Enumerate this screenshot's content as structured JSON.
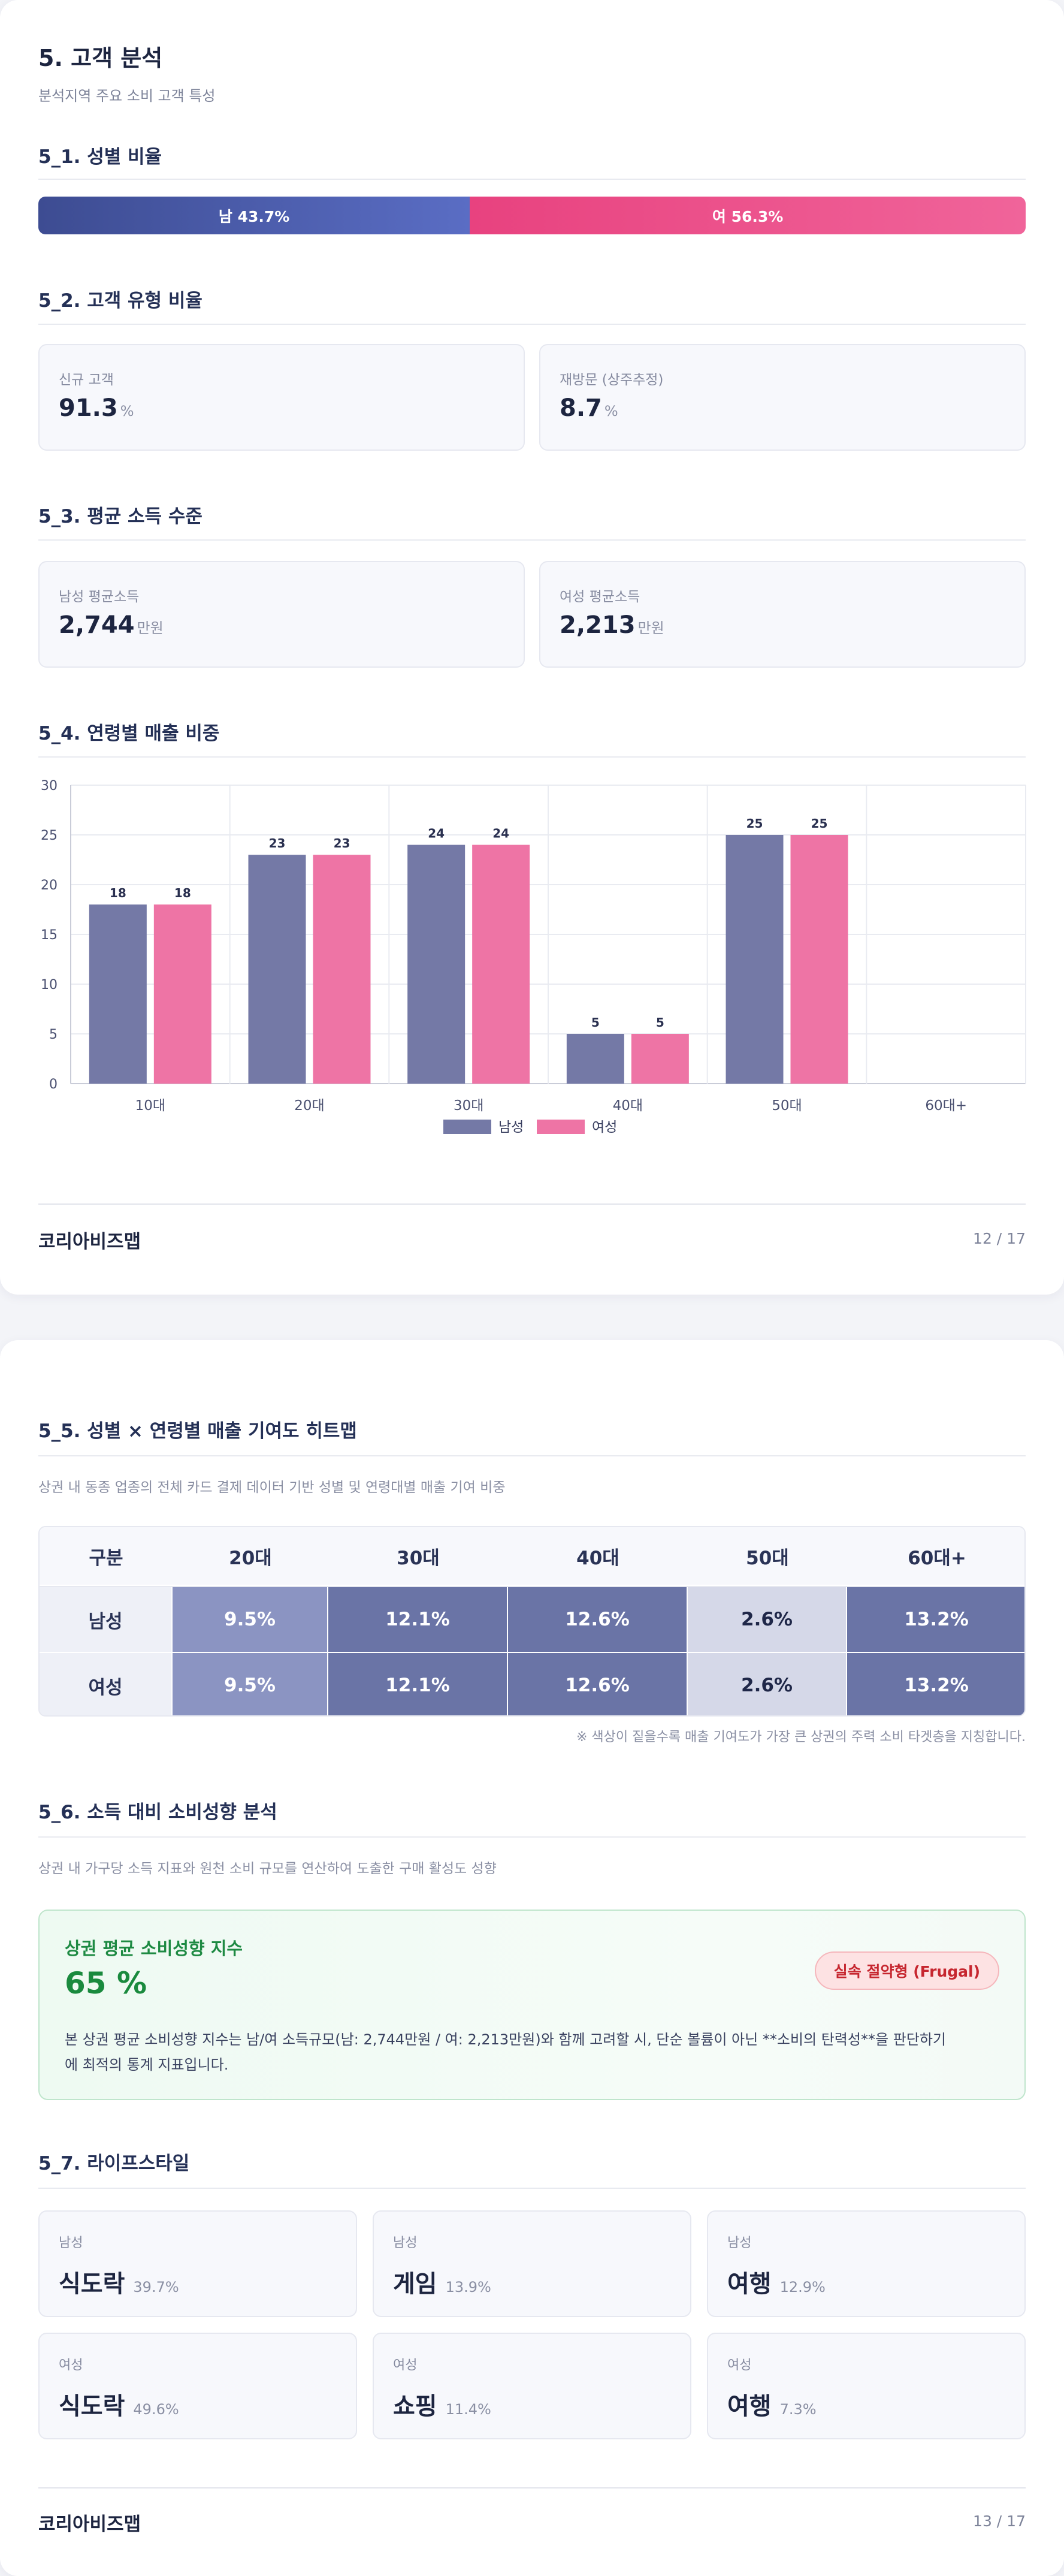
{
  "page1": {
    "title": "5. 고객 분석",
    "subtitle": "분석지역 주요 소비 고객 특성",
    "gender_section": {
      "title": "5_1. 성별 비율",
      "male_label": "남 43.7%",
      "female_label": "여 56.3%",
      "male_pct": 43.7,
      "female_pct": 56.3,
      "male_color": "#4a5cae",
      "female_color": "#ec4e89"
    },
    "customer_type_section": {
      "title": "5_2. 고객 유형 비율",
      "cards": [
        {
          "label": "신규 고객",
          "value": "91.3",
          "unit": "%"
        },
        {
          "label": "재방문 (상주추정)",
          "value": "8.7",
          "unit": "%"
        }
      ]
    },
    "income_section": {
      "title": "5_3. 평균 소득 수준",
      "cards": [
        {
          "label": "남성 평균소득",
          "value": "2,744",
          "unit": "만원"
        },
        {
          "label": "여성 평균소득",
          "value": "2,213",
          "unit": "만원"
        }
      ]
    },
    "age_section": {
      "title": "5_4. 연령별 매출 비중"
    },
    "footer": {
      "brand": "코리아비즈맵",
      "page": "12 / 17"
    }
  },
  "chart_data": {
    "type": "bar",
    "categories": [
      "10대",
      "20대",
      "30대",
      "40대",
      "50대",
      "60대+"
    ],
    "series": [
      {
        "name": "남성",
        "values": [
          18,
          23,
          24,
          5,
          25,
          0
        ],
        "color": "#7479a6"
      },
      {
        "name": "여성",
        "values": [
          18,
          23,
          24,
          5,
          25,
          0
        ],
        "color": "#ee74a5"
      }
    ],
    "data_labels": [
      [
        "18",
        "23",
        "24",
        "5",
        "25",
        ""
      ],
      [
        "18",
        "23",
        "24",
        "5",
        "25",
        ""
      ]
    ],
    "yticks": [
      "0",
      "5",
      "10",
      "15",
      "20",
      "25",
      "30"
    ],
    "ylim": [
      0,
      30
    ],
    "grid": true,
    "legend": "bottom-center"
  },
  "page2": {
    "heatmap_section": {
      "title": "5_5. 성별 × 연령별 매출 기여도 히트맵",
      "subtitle": "상권 내 동종 업종의 전체 카드 결제 데이터 기반 성별 및 연령대별 매출 기여 비중",
      "headers": [
        "구분",
        "20대",
        "30대",
        "40대",
        "50대",
        "60대+"
      ],
      "rows": [
        {
          "label": "남성",
          "cells": [
            "9.5%",
            "12.1%",
            "12.6%",
            "2.6%",
            "13.2%"
          ],
          "levels": [
            9.5,
            12.1,
            12.6,
            2.6,
            13.2
          ]
        },
        {
          "label": "여성",
          "cells": [
            "9.5%",
            "12.1%",
            "12.6%",
            "2.6%",
            "13.2%"
          ],
          "levels": [
            9.5,
            12.1,
            12.6,
            2.6,
            13.2
          ]
        }
      ],
      "note": "※ 색상이 짙을수록 매출 기여도가 가장 큰 상권의 주력 소비 타겟층을 지칭합니다."
    },
    "spending_section": {
      "title": "5_6. 소득 대비 소비성향 분석",
      "subtitle": "상권 내 가구당 소득 지표와 원천 소비 규모를 연산하여 도출한 구매 활성도 성향",
      "card_title": "상권 평균 소비성향 지수",
      "card_value": "65 %",
      "badge": "실속 절약형 (Frugal)",
      "desc_line1": "본 상권 평균 소비성향 지수는 남/여 소득규모(남: 2,744만원 / 여: 2,213만원)와 함께 고려할 시, 단순 볼륨이 아닌 **소비의 탄력성**을 판단하기",
      "desc_line2": "에 최적의 통계 지표입니다."
    },
    "lifestyle_section": {
      "title": "5_7. 라이프스타일",
      "cards": [
        {
          "gender": "남성",
          "name": "식도락",
          "pct": "39.7%"
        },
        {
          "gender": "남성",
          "name": "게임",
          "pct": "13.9%"
        },
        {
          "gender": "남성",
          "name": "여행",
          "pct": "12.9%"
        },
        {
          "gender": "여성",
          "name": "식도락",
          "pct": "49.6%"
        },
        {
          "gender": "여성",
          "name": "쇼핑",
          "pct": "11.4%"
        },
        {
          "gender": "여성",
          "name": "여행",
          "pct": "7.3%"
        }
      ]
    },
    "footer": {
      "brand": "코리아비즈맵",
      "page": "13 / 17"
    }
  }
}
